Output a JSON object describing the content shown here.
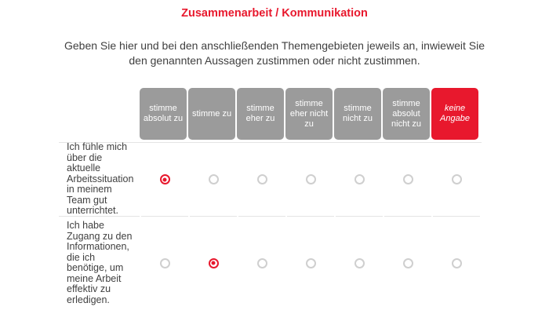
{
  "page": {
    "title": "Zusammenarbeit / Kommunikation",
    "instructions": "Geben Sie hier und bei den anschließenden Themengebieten jeweils an, inwieweit Sie den genannten Aussagen zustimmen oder nicht zustimmen."
  },
  "colors": {
    "brand_red": "#e8182d",
    "header_gray": "#9b9b9b",
    "separator_gray": "#e4e4e4",
    "body_text": "#3f3f3f"
  },
  "matrix": {
    "columns": [
      {
        "label": "stimme absolut zu",
        "style": "gray"
      },
      {
        "label": "stimme zu",
        "style": "gray"
      },
      {
        "label": "stimme eher zu",
        "style": "gray"
      },
      {
        "label": "stimme eher nicht zu",
        "style": "gray"
      },
      {
        "label": "stimme nicht zu",
        "style": "gray"
      },
      {
        "label": "stimme absolut nicht zu",
        "style": "gray"
      },
      {
        "label": "keine Angabe",
        "style": "red-italic"
      }
    ],
    "rows": [
      {
        "statement": "Ich fühle mich über die aktuelle Arbeitssituation in meinem Team gut unterrichtet.",
        "selected_column_index": 0
      },
      {
        "statement": "Ich habe Zugang zu den Informationen, die ich benötige, um meine Arbeit effektiv zu erledigen.",
        "selected_column_index": 1
      }
    ]
  }
}
